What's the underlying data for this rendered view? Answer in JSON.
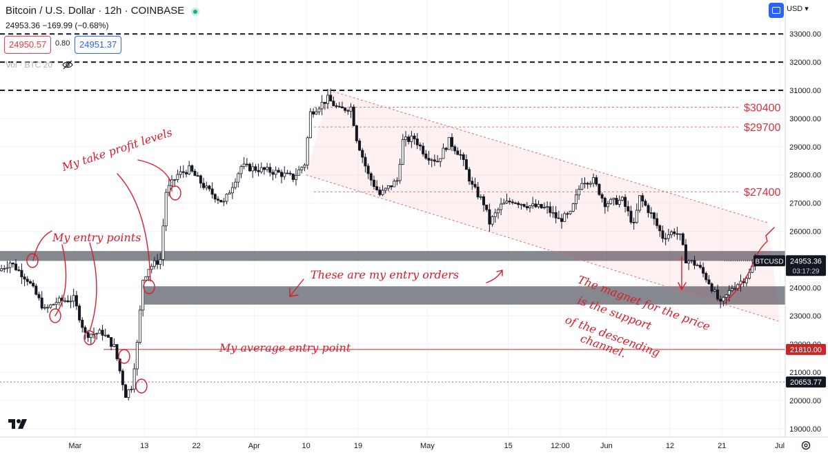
{
  "header": {
    "title": "Bitcoin / U.S. Dollar · 12h · COINBASE",
    "quote": "24953.36 −169.99 (−0.68%)",
    "bid": "24950.57",
    "spread": "0.80",
    "ask": "24951.37",
    "volume_label": "Vol · BTC 20",
    "currency": "USD"
  },
  "chart_data": {
    "type": "candlestick",
    "symbol": "BTCUSD",
    "interval": "12h",
    "ylim": [
      19000,
      33500
    ],
    "y_ticks": [
      19000,
      20000,
      21000,
      22000,
      23000,
      24000,
      25000,
      26000,
      27000,
      28000,
      29000,
      30000,
      31000,
      32000,
      33000
    ],
    "y_tick_labels": [
      "19000.00",
      "20000.00",
      "21000.00",
      "22000.00",
      "23000.00",
      "24000.00",
      "25000.00",
      "26000.00",
      "27000.00",
      "28000.00",
      "29000.00",
      "30000.00",
      "31000.00",
      "32000.00",
      "33000.00"
    ],
    "x_range": [
      "2023-02-16",
      "2023-07-01"
    ],
    "x_ticks": [
      {
        "date": "2023-03-01",
        "label": "Mar"
      },
      {
        "date": "2023-03-13",
        "label": "13"
      },
      {
        "date": "2023-03-22",
        "label": "22"
      },
      {
        "date": "2023-04-01",
        "label": "Apr"
      },
      {
        "date": "2023-04-10",
        "label": "10"
      },
      {
        "date": "2023-04-19",
        "label": "19"
      },
      {
        "date": "2023-05-01",
        "label": "May"
      },
      {
        "date": "2023-05-15",
        "label": "15"
      },
      {
        "date": "2023-05-24",
        "label": "12:00"
      },
      {
        "date": "2023-06-01",
        "label": "Jun"
      },
      {
        "date": "2023-06-12",
        "label": "12"
      },
      {
        "date": "2023-06-21",
        "label": "21"
      },
      {
        "date": "2023-07-01",
        "label": "Jul"
      }
    ],
    "price_path": [
      [
        "2023-02-16",
        24600
      ],
      [
        "2023-02-18",
        24900
      ],
      [
        "2023-02-21",
        24300
      ],
      [
        "2023-02-24",
        23200
      ],
      [
        "2023-02-26",
        23500
      ],
      [
        "2023-03-01",
        23600
      ],
      [
        "2023-03-03",
        22350
      ],
      [
        "2023-03-06",
        22400
      ],
      [
        "2023-03-08",
        21900
      ],
      [
        "2023-03-10",
        20200
      ],
      [
        "2023-03-11",
        20500
      ],
      [
        "2023-03-12",
        22000
      ],
      [
        "2023-03-13",
        24300
      ],
      [
        "2023-03-14",
        24700
      ],
      [
        "2023-03-16",
        25000
      ],
      [
        "2023-03-17",
        27400
      ],
      [
        "2023-03-19",
        28000
      ],
      [
        "2023-03-21",
        28200
      ],
      [
        "2023-03-24",
        27500
      ],
      [
        "2023-03-27",
        27000
      ],
      [
        "2023-03-30",
        28300
      ],
      [
        "2023-04-02",
        28200
      ],
      [
        "2023-04-05",
        28100
      ],
      [
        "2023-04-08",
        27900
      ],
      [
        "2023-04-10",
        28400
      ],
      [
        "2023-04-11",
        30200
      ],
      [
        "2023-04-14",
        30700
      ],
      [
        "2023-04-16",
        30300
      ],
      [
        "2023-04-18",
        30400
      ],
      [
        "2023-04-19",
        29300
      ],
      [
        "2023-04-21",
        28000
      ],
      [
        "2023-04-23",
        27300
      ],
      [
        "2023-04-26",
        27800
      ],
      [
        "2023-04-27",
        29200
      ],
      [
        "2023-04-29",
        29300
      ],
      [
        "2023-05-01",
        28700
      ],
      [
        "2023-05-03",
        28500
      ],
      [
        "2023-05-05",
        29200
      ],
      [
        "2023-05-07",
        28700
      ],
      [
        "2023-05-09",
        27600
      ],
      [
        "2023-05-11",
        27000
      ],
      [
        "2023-05-12",
        26300
      ],
      [
        "2023-05-14",
        26900
      ],
      [
        "2023-05-16",
        27100
      ],
      [
        "2023-05-19",
        26900
      ],
      [
        "2023-05-22",
        26800
      ],
      [
        "2023-05-24",
        26400
      ],
      [
        "2023-05-26",
        26600
      ],
      [
        "2023-05-28",
        27800
      ],
      [
        "2023-05-30",
        27800
      ],
      [
        "2023-06-01",
        27000
      ],
      [
        "2023-06-04",
        27100
      ],
      [
        "2023-06-06",
        26200
      ],
      [
        "2023-06-07",
        27200
      ],
      [
        "2023-06-09",
        26600
      ],
      [
        "2023-06-11",
        25800
      ],
      [
        "2023-06-13",
        26000
      ],
      [
        "2023-06-14",
        25800
      ],
      [
        "2023-06-15",
        25000
      ],
      [
        "2023-06-17",
        24800
      ],
      [
        "2023-06-19",
        24200
      ],
      [
        "2023-06-20",
        23800
      ],
      [
        "2023-06-21",
        23400
      ],
      [
        "2023-06-23",
        24000
      ],
      [
        "2023-06-25",
        24300
      ],
      [
        "2023-06-26",
        24500
      ],
      [
        "2023-06-27",
        24953.36
      ]
    ],
    "current_price": {
      "label": "BTCUSD",
      "value": "24953.36",
      "countdown": "03:17:29"
    },
    "price_markers": [
      {
        "value": 21810,
        "label": "21810.00",
        "style": "red-solid"
      },
      {
        "value": 20653.77,
        "label": "20653.77",
        "style": "dark-dotted"
      }
    ],
    "resistance_lines": [
      31000,
      32000,
      33000
    ],
    "take_profit_levels": [
      {
        "value": 30400,
        "label": "$30400"
      },
      {
        "value": 29700,
        "label": "$29700"
      },
      {
        "value": 27400,
        "label": "$27400"
      }
    ],
    "entry_zones": [
      {
        "from": 24950,
        "to": 25300,
        "start": "2023-02-16"
      },
      {
        "from": 23400,
        "to": 24050,
        "start": "2023-03-13"
      }
    ],
    "channel": {
      "upper": [
        [
          "2023-04-14",
          31000
        ],
        [
          "2023-06-29",
          26300
        ]
      ],
      "lower": [
        [
          "2023-04-10",
          28000
        ],
        [
          "2023-07-01",
          22800
        ]
      ]
    },
    "annotations": [
      "My take profit levels",
      "My entry points",
      "These are my entry orders",
      "My average entry point",
      "The magnet for the price",
      "is the support",
      "of the descending",
      "channel."
    ]
  }
}
